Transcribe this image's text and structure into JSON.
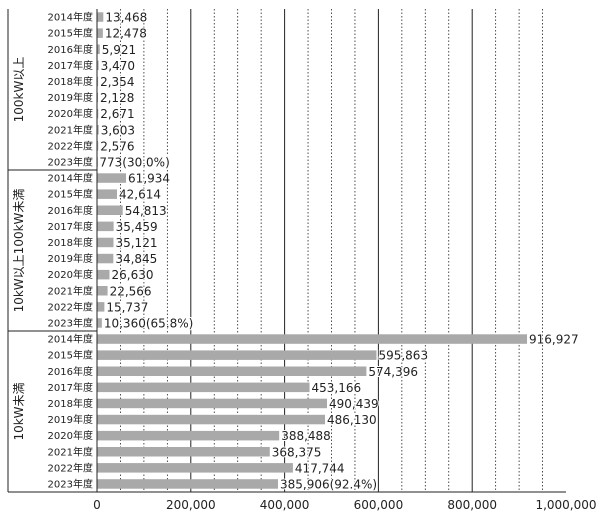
{
  "chart_data": {
    "type": "bar",
    "orientation": "horizontal",
    "categories": [
      "2014年度",
      "2015年度",
      "2016年度",
      "2017年度",
      "2018年度",
      "2019年度",
      "2020年度",
      "2021年度",
      "2022年度",
      "2023年度"
    ],
    "groups": [
      {
        "name": "100kW以上",
        "values": [
          13468,
          12478,
          5921,
          3470,
          2354,
          2128,
          2671,
          3603,
          2576,
          773
        ],
        "labels": [
          "13,468",
          "12,478",
          "5,921",
          "3,470",
          "2,354",
          "2,128",
          "2,671",
          "3,603",
          "2,576",
          "773(30.0%)"
        ]
      },
      {
        "name": "10kW以上100kW未満",
        "values": [
          61934,
          42614,
          54813,
          35459,
          35121,
          34845,
          26630,
          22566,
          15737,
          10360
        ],
        "labels": [
          "61,934",
          "42,614",
          "54,813",
          "35,459",
          "35,121",
          "34,845",
          "26,630",
          "22,566",
          "15,737",
          "10,360(65.8%)"
        ]
      },
      {
        "name": "10kW未満",
        "values": [
          916927,
          595863,
          574396,
          453166,
          490439,
          486130,
          388488,
          368375,
          417744,
          385906
        ],
        "labels": [
          "916,927",
          "595,863",
          "574,396",
          "453,166",
          "490,439",
          "486,130",
          "388,488",
          "368,375",
          "417,744",
          "385,906(92.4%)"
        ]
      }
    ],
    "xlim": [
      0,
      1000000
    ],
    "xticks": [
      0,
      200000,
      400000,
      600000,
      800000,
      1000000
    ],
    "xtick_labels": [
      "0",
      "200,000",
      "400,000",
      "600,000",
      "800,000",
      "1,000,000"
    ],
    "grid": "vertical",
    "bar_color": "#a9a9a9"
  }
}
